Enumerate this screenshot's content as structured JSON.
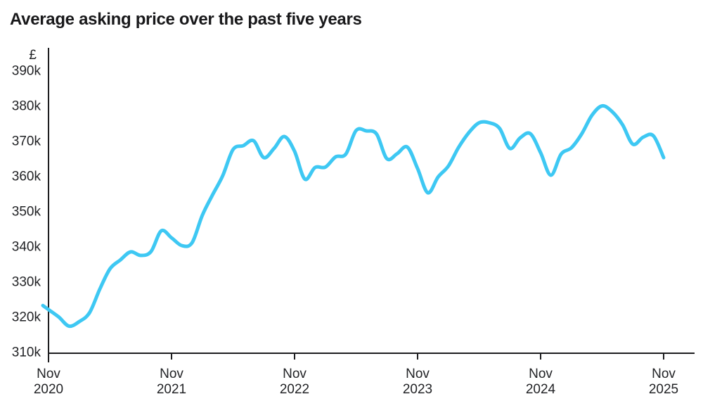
{
  "chart_data": {
    "type": "line",
    "title": "Average asking price over the past five years",
    "y_axis_unit": "£",
    "series_name": "Average asking price",
    "line_color": "#3EC8F3",
    "axis_color": "#1d1d1f",
    "grid": false,
    "legend": null,
    "ylim": [
      310,
      390
    ],
    "y_tick_values": [
      390,
      380,
      370,
      360,
      350,
      340,
      330,
      320,
      310
    ],
    "y_tick_labels": [
      "390k",
      "380k",
      "370k",
      "360k",
      "350k",
      "340k",
      "330k",
      "320k",
      "310k"
    ],
    "x_tick_month_indices": [
      0,
      12,
      24,
      36,
      48,
      60
    ],
    "x_tick_labels": [
      [
        "Nov",
        "2020"
      ],
      [
        "Nov",
        "2021"
      ],
      [
        "Nov",
        "2022"
      ],
      [
        "Nov",
        "2023"
      ],
      [
        "Nov",
        "2024"
      ],
      [
        "Nov",
        "2025"
      ]
    ],
    "x_months": [
      "Nov 2020",
      "Dec 2020",
      "Jan 2021",
      "Feb 2021",
      "Mar 2021",
      "Apr 2021",
      "May 2021",
      "Jun 2021",
      "Jul 2021",
      "Aug 2021",
      "Sep 2021",
      "Oct 2021",
      "Nov 2021",
      "Dec 2021",
      "Jan 2022",
      "Feb 2022",
      "Mar 2022",
      "Apr 2022",
      "May 2022",
      "Jun 2022",
      "Jul 2022",
      "Aug 2022",
      "Sep 2022",
      "Oct 2022",
      "Nov 2022",
      "Dec 2022",
      "Jan 2023",
      "Feb 2023",
      "Mar 2023",
      "Apr 2023",
      "May 2023",
      "Jun 2023",
      "Jul 2023",
      "Aug 2023",
      "Sep 2023",
      "Oct 2023",
      "Nov 2023",
      "Dec 2023",
      "Jan 2024",
      "Feb 2024",
      "Mar 2024",
      "Apr 2024",
      "May 2024",
      "Jun 2024",
      "Jul 2024",
      "Aug 2024",
      "Sep 2024",
      "Oct 2024",
      "Nov 2024",
      "Dec 2024",
      "Jan 2025",
      "Feb 2025",
      "Mar 2025",
      "Apr 2025",
      "May 2025",
      "Jun 2025",
      "Jul 2025",
      "Aug 2025",
      "Sep 2025",
      "Oct 2025",
      "Nov 2025"
    ],
    "values_k_gbp": [
      322.0,
      319.9,
      317.3,
      318.6,
      321.1,
      327.8,
      333.6,
      336.1,
      338.4,
      337.4,
      338.5,
      344.4,
      342.4,
      340.2,
      341.0,
      348.8,
      354.6,
      360.1,
      367.5,
      368.6,
      370.0,
      365.2,
      367.8,
      371.2,
      367.0,
      359.1,
      362.4,
      362.5,
      365.4,
      366.2,
      372.9,
      372.8,
      371.9,
      364.9,
      366.3,
      368.2,
      362.1,
      355.2,
      359.7,
      362.8,
      368.1,
      372.3,
      375.1,
      375.1,
      373.5,
      367.8,
      370.8,
      372.0,
      366.6,
      360.2,
      366.2,
      368.0,
      371.9,
      377.2,
      379.9,
      378.2,
      374.5,
      369.0,
      371.0,
      371.4,
      365.2
    ]
  }
}
